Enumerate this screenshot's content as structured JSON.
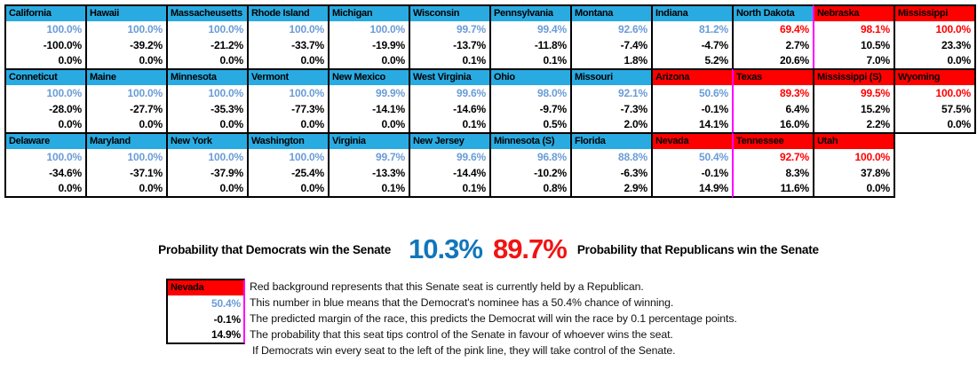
{
  "colors": {
    "header_blue": "#29ABE2",
    "header_red": "#FF0000",
    "value_blue": "#6A9CD8",
    "value_red": "#FF0000",
    "pink_line": "#FF00FF",
    "dem_big": "#1176BC",
    "rep_big": "#F01414"
  },
  "table": {
    "rows": [
      {
        "states": [
          {
            "name": "California",
            "seat_party": "dem",
            "prob": "100.0%",
            "prob_color": "blue",
            "margin": "-100.0%",
            "tip": "0.0%"
          },
          {
            "name": "Hawaii",
            "seat_party": "dem",
            "prob": "100.0%",
            "prob_color": "blue",
            "margin": "-39.2%",
            "tip": "0.0%"
          },
          {
            "name": "Massacheusetts",
            "seat_party": "dem",
            "prob": "100.0%",
            "prob_color": "blue",
            "margin": "-21.2%",
            "tip": "0.0%"
          },
          {
            "name": "Rhode Island",
            "seat_party": "dem",
            "prob": "100.0%",
            "prob_color": "blue",
            "margin": "-33.7%",
            "tip": "0.0%"
          },
          {
            "name": "Michigan",
            "seat_party": "dem",
            "prob": "100.0%",
            "prob_color": "blue",
            "margin": "-19.9%",
            "tip": "0.0%"
          },
          {
            "name": "Wisconsin",
            "seat_party": "dem",
            "prob": "99.7%",
            "prob_color": "blue",
            "margin": "-13.7%",
            "tip": "0.1%"
          },
          {
            "name": "Pennsylvania",
            "seat_party": "dem",
            "prob": "99.4%",
            "prob_color": "blue",
            "margin": "-11.8%",
            "tip": "0.1%"
          },
          {
            "name": "Montana",
            "seat_party": "dem",
            "prob": "92.6%",
            "prob_color": "blue",
            "margin": "-7.4%",
            "tip": "1.8%"
          },
          {
            "name": "Indiana",
            "seat_party": "dem",
            "prob": "81.2%",
            "prob_color": "blue",
            "margin": "-4.7%",
            "tip": "5.2%"
          },
          {
            "name": "North Dakota",
            "seat_party": "dem",
            "prob": "69.4%",
            "prob_color": "red",
            "margin": "2.7%",
            "tip": "20.6%"
          },
          {
            "name": "Nebraska",
            "seat_party": "rep",
            "prob": "98.1%",
            "prob_color": "red",
            "margin": "10.5%",
            "tip": "7.0%",
            "pink_left": true
          },
          {
            "name": "Mississippi",
            "seat_party": "rep",
            "prob": "100.0%",
            "prob_color": "red",
            "margin": "23.3%",
            "tip": "0.0%"
          }
        ]
      },
      {
        "states": [
          {
            "name": "Conneticut",
            "seat_party": "dem",
            "prob": "100.0%",
            "prob_color": "blue",
            "margin": "-28.0%",
            "tip": "0.0%"
          },
          {
            "name": "Maine",
            "seat_party": "dem",
            "prob": "100.0%",
            "prob_color": "blue",
            "margin": "-27.7%",
            "tip": "0.0%"
          },
          {
            "name": "Minnesota",
            "seat_party": "dem",
            "prob": "100.0%",
            "prob_color": "blue",
            "margin": "-35.3%",
            "tip": "0.0%"
          },
          {
            "name": "Vermont",
            "seat_party": "dem",
            "prob": "100.0%",
            "prob_color": "blue",
            "margin": "-77.3%",
            "tip": "0.0%"
          },
          {
            "name": "New Mexico",
            "seat_party": "dem",
            "prob": "99.9%",
            "prob_color": "blue",
            "margin": "-14.1%",
            "tip": "0.0%"
          },
          {
            "name": "West Virginia",
            "seat_party": "dem",
            "prob": "99.6%",
            "prob_color": "blue",
            "margin": "-14.6%",
            "tip": "0.1%"
          },
          {
            "name": "Ohio",
            "seat_party": "dem",
            "prob": "98.0%",
            "prob_color": "blue",
            "margin": "-9.7%",
            "tip": "0.5%"
          },
          {
            "name": "Missouri",
            "seat_party": "dem",
            "prob": "92.1%",
            "prob_color": "blue",
            "margin": "-7.3%",
            "tip": "2.0%"
          },
          {
            "name": "Arizona",
            "seat_party": "rep",
            "prob": "50.6%",
            "prob_color": "blue",
            "margin": "-0.1%",
            "tip": "14.1%"
          },
          {
            "name": "Texas",
            "seat_party": "rep",
            "prob": "89.3%",
            "prob_color": "red",
            "margin": "6.4%",
            "tip": "16.0%",
            "pink_left": true
          },
          {
            "name": "Mississippi (S)",
            "seat_party": "rep",
            "prob": "99.5%",
            "prob_color": "red",
            "margin": "15.2%",
            "tip": "2.2%"
          },
          {
            "name": "Wyoming",
            "seat_party": "rep",
            "prob": "100.0%",
            "prob_color": "red",
            "margin": "57.5%",
            "tip": "0.0%"
          }
        ]
      },
      {
        "states": [
          {
            "name": "Delaware",
            "seat_party": "dem",
            "prob": "100.0%",
            "prob_color": "blue",
            "margin": "-34.6%",
            "tip": "0.0%"
          },
          {
            "name": "Maryland",
            "seat_party": "dem",
            "prob": "100.0%",
            "prob_color": "blue",
            "margin": "-37.1%",
            "tip": "0.0%"
          },
          {
            "name": "New York",
            "seat_party": "dem",
            "prob": "100.0%",
            "prob_color": "blue",
            "margin": "-37.9%",
            "tip": "0.0%"
          },
          {
            "name": "Washington",
            "seat_party": "dem",
            "prob": "100.0%",
            "prob_color": "blue",
            "margin": "-25.4%",
            "tip": "0.0%"
          },
          {
            "name": "Virginia",
            "seat_party": "dem",
            "prob": "99.7%",
            "prob_color": "blue",
            "margin": "-13.3%",
            "tip": "0.1%"
          },
          {
            "name": "New Jersey",
            "seat_party": "dem",
            "prob": "99.6%",
            "prob_color": "blue",
            "margin": "-14.4%",
            "tip": "0.1%"
          },
          {
            "name": "Minnesota (S)",
            "seat_party": "dem",
            "prob": "96.8%",
            "prob_color": "blue",
            "margin": "-10.2%",
            "tip": "0.8%"
          },
          {
            "name": "Florida",
            "seat_party": "dem",
            "prob": "88.8%",
            "prob_color": "blue",
            "margin": "-6.3%",
            "tip": "2.9%"
          },
          {
            "name": "Nevada",
            "seat_party": "rep",
            "prob": "50.4%",
            "prob_color": "blue",
            "margin": "-0.1%",
            "tip": "14.9%"
          },
          {
            "name": "Tennessee",
            "seat_party": "rep",
            "prob": "92.7%",
            "prob_color": "red",
            "margin": "8.3%",
            "tip": "11.6%",
            "pink_left": true
          },
          {
            "name": "Utah",
            "seat_party": "rep",
            "prob": "100.0%",
            "prob_color": "red",
            "margin": "37.8%",
            "tip": "0.0%"
          }
        ]
      }
    ]
  },
  "summary": {
    "dem_label": "Probability that Democrats win the Senate",
    "dem_value": "10.3%",
    "rep_value": "89.7%",
    "rep_label": "Probability that Republicans win the Senate"
  },
  "legend": {
    "example": {
      "name": "Nevada",
      "prob": "50.4%",
      "margin": "-0.1%",
      "tip": "14.9%"
    },
    "lines": [
      "Red background represents that this Senate seat is currently held by a Republican.",
      "This number in blue means that the Democrat's nominee has a 50.4% chance of winning.",
      "The predicted margin of the race, this predicts the Democrat will win the race by 0.1 percentage points.",
      "The probability that this seat tips control of the Senate in favour of whoever wins the seat.",
      "If Democrats win every seat to the left of the pink line, they will take control of the Senate."
    ]
  }
}
